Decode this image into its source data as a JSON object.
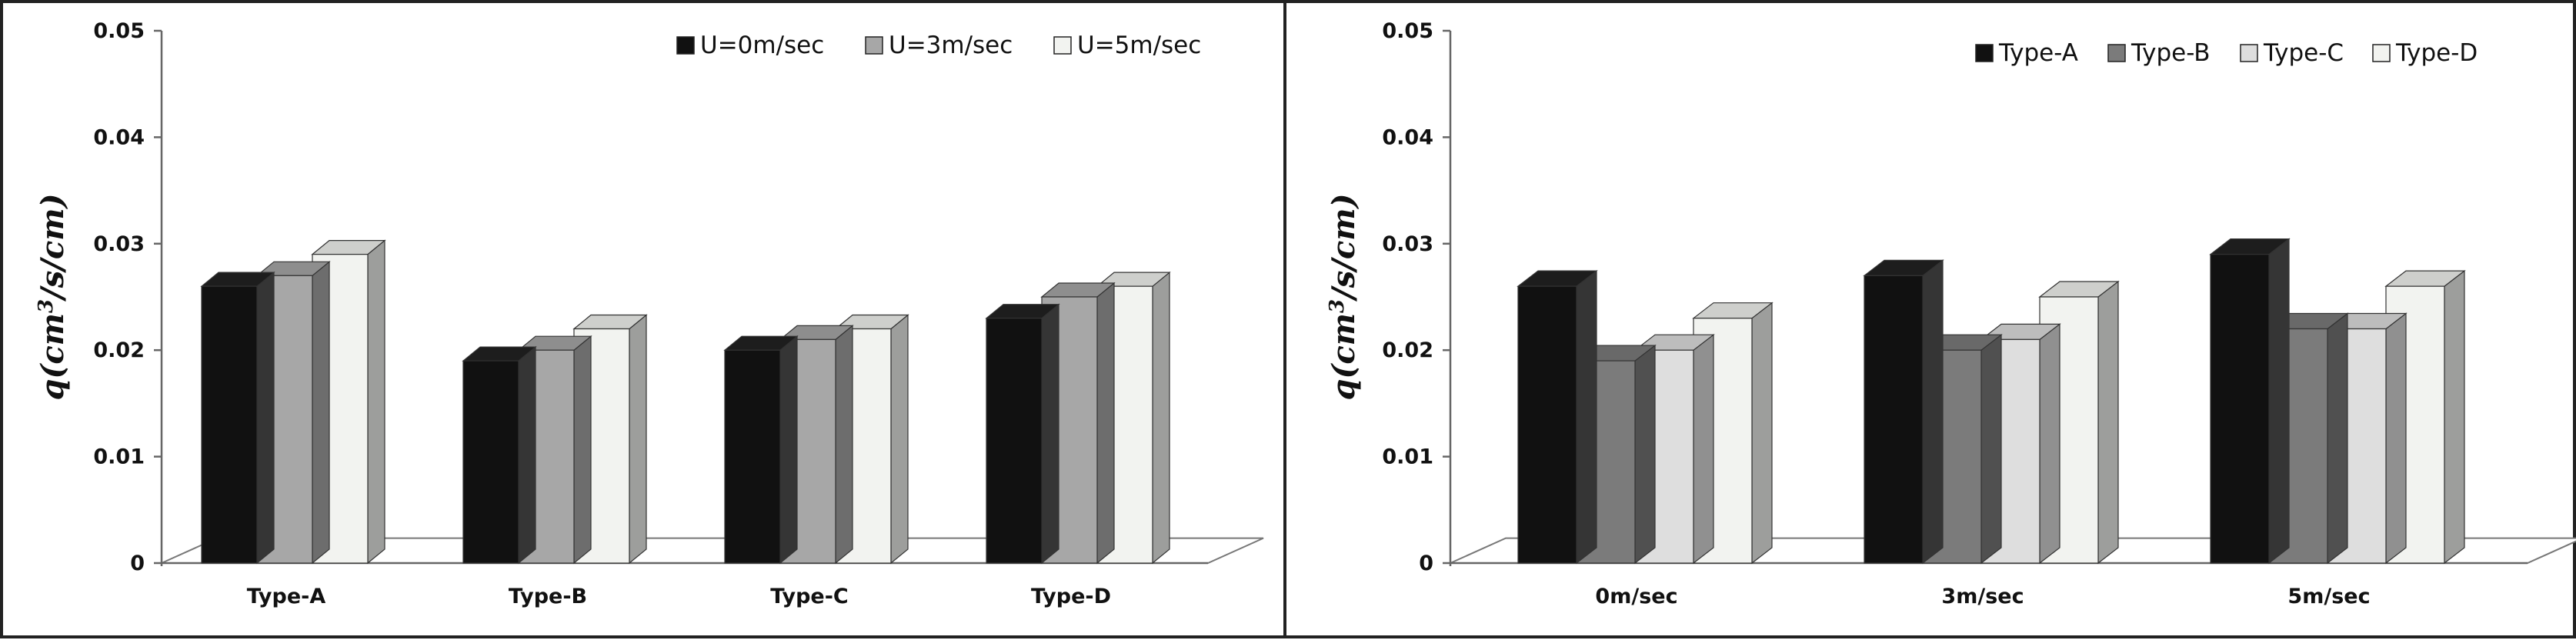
{
  "colors": {
    "black": "#111111",
    "gray": "#a7a7a7",
    "darkgray": "#7b7b7b",
    "lightgray": "#dedede",
    "white": "#f2f3f0"
  },
  "chart_data": [
    {
      "type": "bar",
      "ylabel_base": "q(cm",
      "ylabel_sup": "3",
      "ylabel_rest": "/s/cm)",
      "ylim": [
        0,
        0.05
      ],
      "yticks": [
        "0",
        "0.01",
        "0.02",
        "0.03",
        "0.04",
        "0.05"
      ],
      "grid": false,
      "legend_position": "top-right",
      "categories": [
        "Type-A",
        "Type-B",
        "Type-C",
        "Type-D"
      ],
      "series": [
        {
          "name": "U=0m/sec",
          "color": "#111111",
          "values": [
            0.026,
            0.019,
            0.02,
            0.023
          ]
        },
        {
          "name": "U=3m/sec",
          "color": "#a7a7a7",
          "values": [
            0.027,
            0.02,
            0.021,
            0.025
          ]
        },
        {
          "name": "U=5m/sec",
          "color": "#f2f3f0",
          "values": [
            0.029,
            0.022,
            0.022,
            0.026
          ]
        }
      ]
    },
    {
      "type": "bar",
      "ylabel_base": "q(cm",
      "ylabel_sup": "3",
      "ylabel_rest": "/s/cm)",
      "ylim": [
        0,
        0.05
      ],
      "yticks": [
        "0",
        "0.01",
        "0.02",
        "0.03",
        "0.04",
        "0.05"
      ],
      "grid": false,
      "legend_position": "top-right",
      "categories": [
        "0m/sec",
        "3m/sec",
        "5m/sec"
      ],
      "series": [
        {
          "name": "Type-A",
          "color": "#111111",
          "values": [
            0.026,
            0.027,
            0.029
          ]
        },
        {
          "name": "Type-B",
          "color": "#7b7b7b",
          "values": [
            0.019,
            0.02,
            0.022
          ]
        },
        {
          "name": "Type-C",
          "color": "#dedede",
          "values": [
            0.02,
            0.021,
            0.022
          ]
        },
        {
          "name": "Type-D",
          "color": "#f2f3f0",
          "values": [
            0.023,
            0.025,
            0.026
          ]
        }
      ]
    }
  ]
}
